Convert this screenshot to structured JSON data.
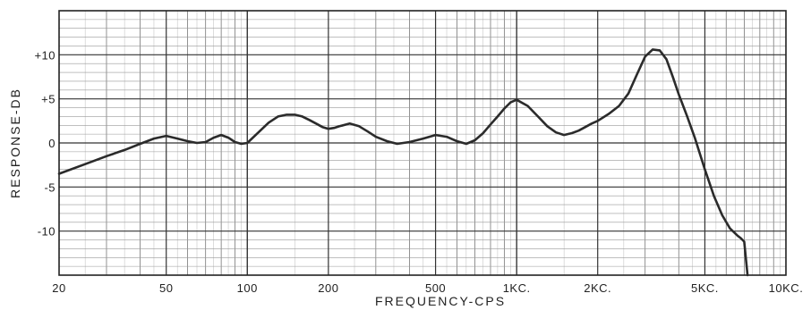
{
  "chart_data": {
    "type": "line",
    "xlabel": "FREQUENCY-CPS",
    "ylabel": "RESPONSE-DB",
    "x_scale": "log",
    "xlim": [
      20,
      10000
    ],
    "ylim": [
      -15,
      15
    ],
    "grid": true,
    "x_ticks": [
      {
        "value": 20,
        "label": "20"
      },
      {
        "value": 50,
        "label": "50"
      },
      {
        "value": 100,
        "label": "100"
      },
      {
        "value": 200,
        "label": "200"
      },
      {
        "value": 500,
        "label": "500"
      },
      {
        "value": 1000,
        "label": "1KC."
      },
      {
        "value": 2000,
        "label": "2KC."
      },
      {
        "value": 5000,
        "label": "5KC."
      },
      {
        "value": 10000,
        "label": "10KC."
      }
    ],
    "y_ticks": [
      {
        "value": 10,
        "label": "+10"
      },
      {
        "value": 5,
        "label": "+5"
      },
      {
        "value": 0,
        "label": "0"
      },
      {
        "value": -5,
        "label": "-5"
      },
      {
        "value": -10,
        "label": "-10"
      }
    ],
    "series": [
      {
        "x": [
          20,
          25,
          30,
          35,
          40,
          45,
          50,
          55,
          60,
          65,
          70,
          75,
          80,
          85,
          90,
          95,
          100,
          110,
          120,
          130,
          140,
          150,
          160,
          170,
          180,
          190,
          200,
          210,
          220,
          240,
          260,
          280,
          300,
          330,
          360,
          400,
          450,
          500,
          550,
          600,
          650,
          700,
          750,
          800,
          850,
          900,
          950,
          1000,
          1100,
          1200,
          1300,
          1400,
          1500,
          1600,
          1700,
          1800,
          1900,
          2000,
          2200,
          2400,
          2600,
          2800,
          3000,
          3200,
          3400,
          3600,
          3800,
          4000,
          4300,
          4600,
          5000,
          5400,
          5800,
          6200,
          6600,
          6800,
          7000,
          7200
        ],
        "y": [
          -3.5,
          -2.4,
          -1.5,
          -0.8,
          -0.1,
          0.5,
          0.8,
          0.5,
          0.2,
          0.0,
          0.1,
          0.6,
          0.9,
          0.6,
          0.1,
          -0.1,
          0.0,
          1.2,
          2.3,
          3.0,
          3.2,
          3.2,
          3.0,
          2.6,
          2.2,
          1.8,
          1.6,
          1.7,
          1.9,
          2.2,
          1.9,
          1.3,
          0.7,
          0.2,
          -0.1,
          0.1,
          0.5,
          0.9,
          0.7,
          0.2,
          -0.1,
          0.3,
          1.1,
          2.1,
          3.0,
          3.9,
          4.6,
          4.9,
          4.2,
          3.0,
          1.9,
          1.2,
          0.9,
          1.1,
          1.4,
          1.8,
          2.2,
          2.5,
          3.3,
          4.2,
          5.6,
          7.8,
          9.8,
          10.6,
          10.5,
          9.5,
          7.5,
          5.5,
          3.0,
          0.5,
          -3.0,
          -6.0,
          -8.2,
          -9.7,
          -10.5,
          -10.8,
          -11.2,
          -15.0
        ]
      }
    ]
  }
}
